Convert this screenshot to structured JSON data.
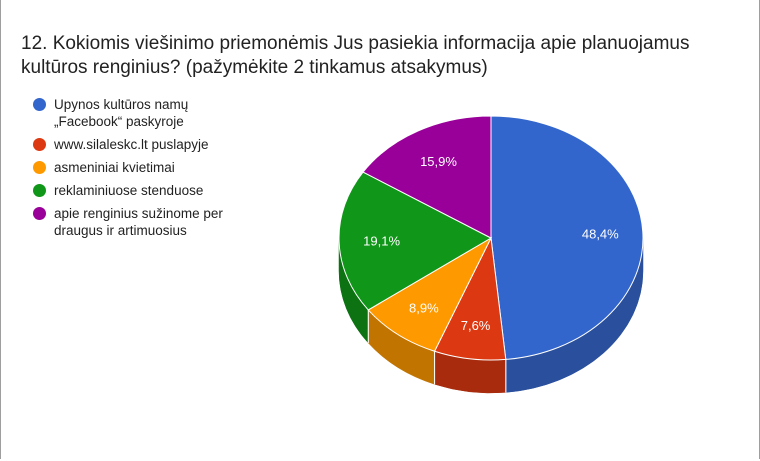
{
  "chart_data": {
    "type": "pie",
    "title": "12. Kokiomis viešinimo priemonėmis Jus pasiekia informacija apie planuojamus kultūros renginius? (pažymėkite 2 tinkamus atsakymus)",
    "legend_position": "left",
    "slices": [
      {
        "label": "Upynos kultūros namų\n„Facebook“ paskyroje",
        "value": 48.4,
        "value_label": "48,4%",
        "color": "#3366cc",
        "side_color": "#2a4f9c"
      },
      {
        "label": "www.silaleskc.lt puslapyje",
        "value": 7.6,
        "value_label": "7,6%",
        "color": "#dc3912",
        "side_color": "#a82b0d"
      },
      {
        "label": "asmeniniai kvietimai",
        "value": 8.9,
        "value_label": "8,9%",
        "color": "#ff9900",
        "side_color": "#c27400"
      },
      {
        "label": "reklaminiuose stenduose",
        "value": 19.1,
        "value_label": "19,1%",
        "color": "#109618",
        "side_color": "#0c7212"
      },
      {
        "label": "apie renginius sužinome per\ndraugus ir artimuosius",
        "value": 15.9,
        "value_label": "15,9%",
        "color": "#990099",
        "side_color": "#740074"
      }
    ]
  }
}
